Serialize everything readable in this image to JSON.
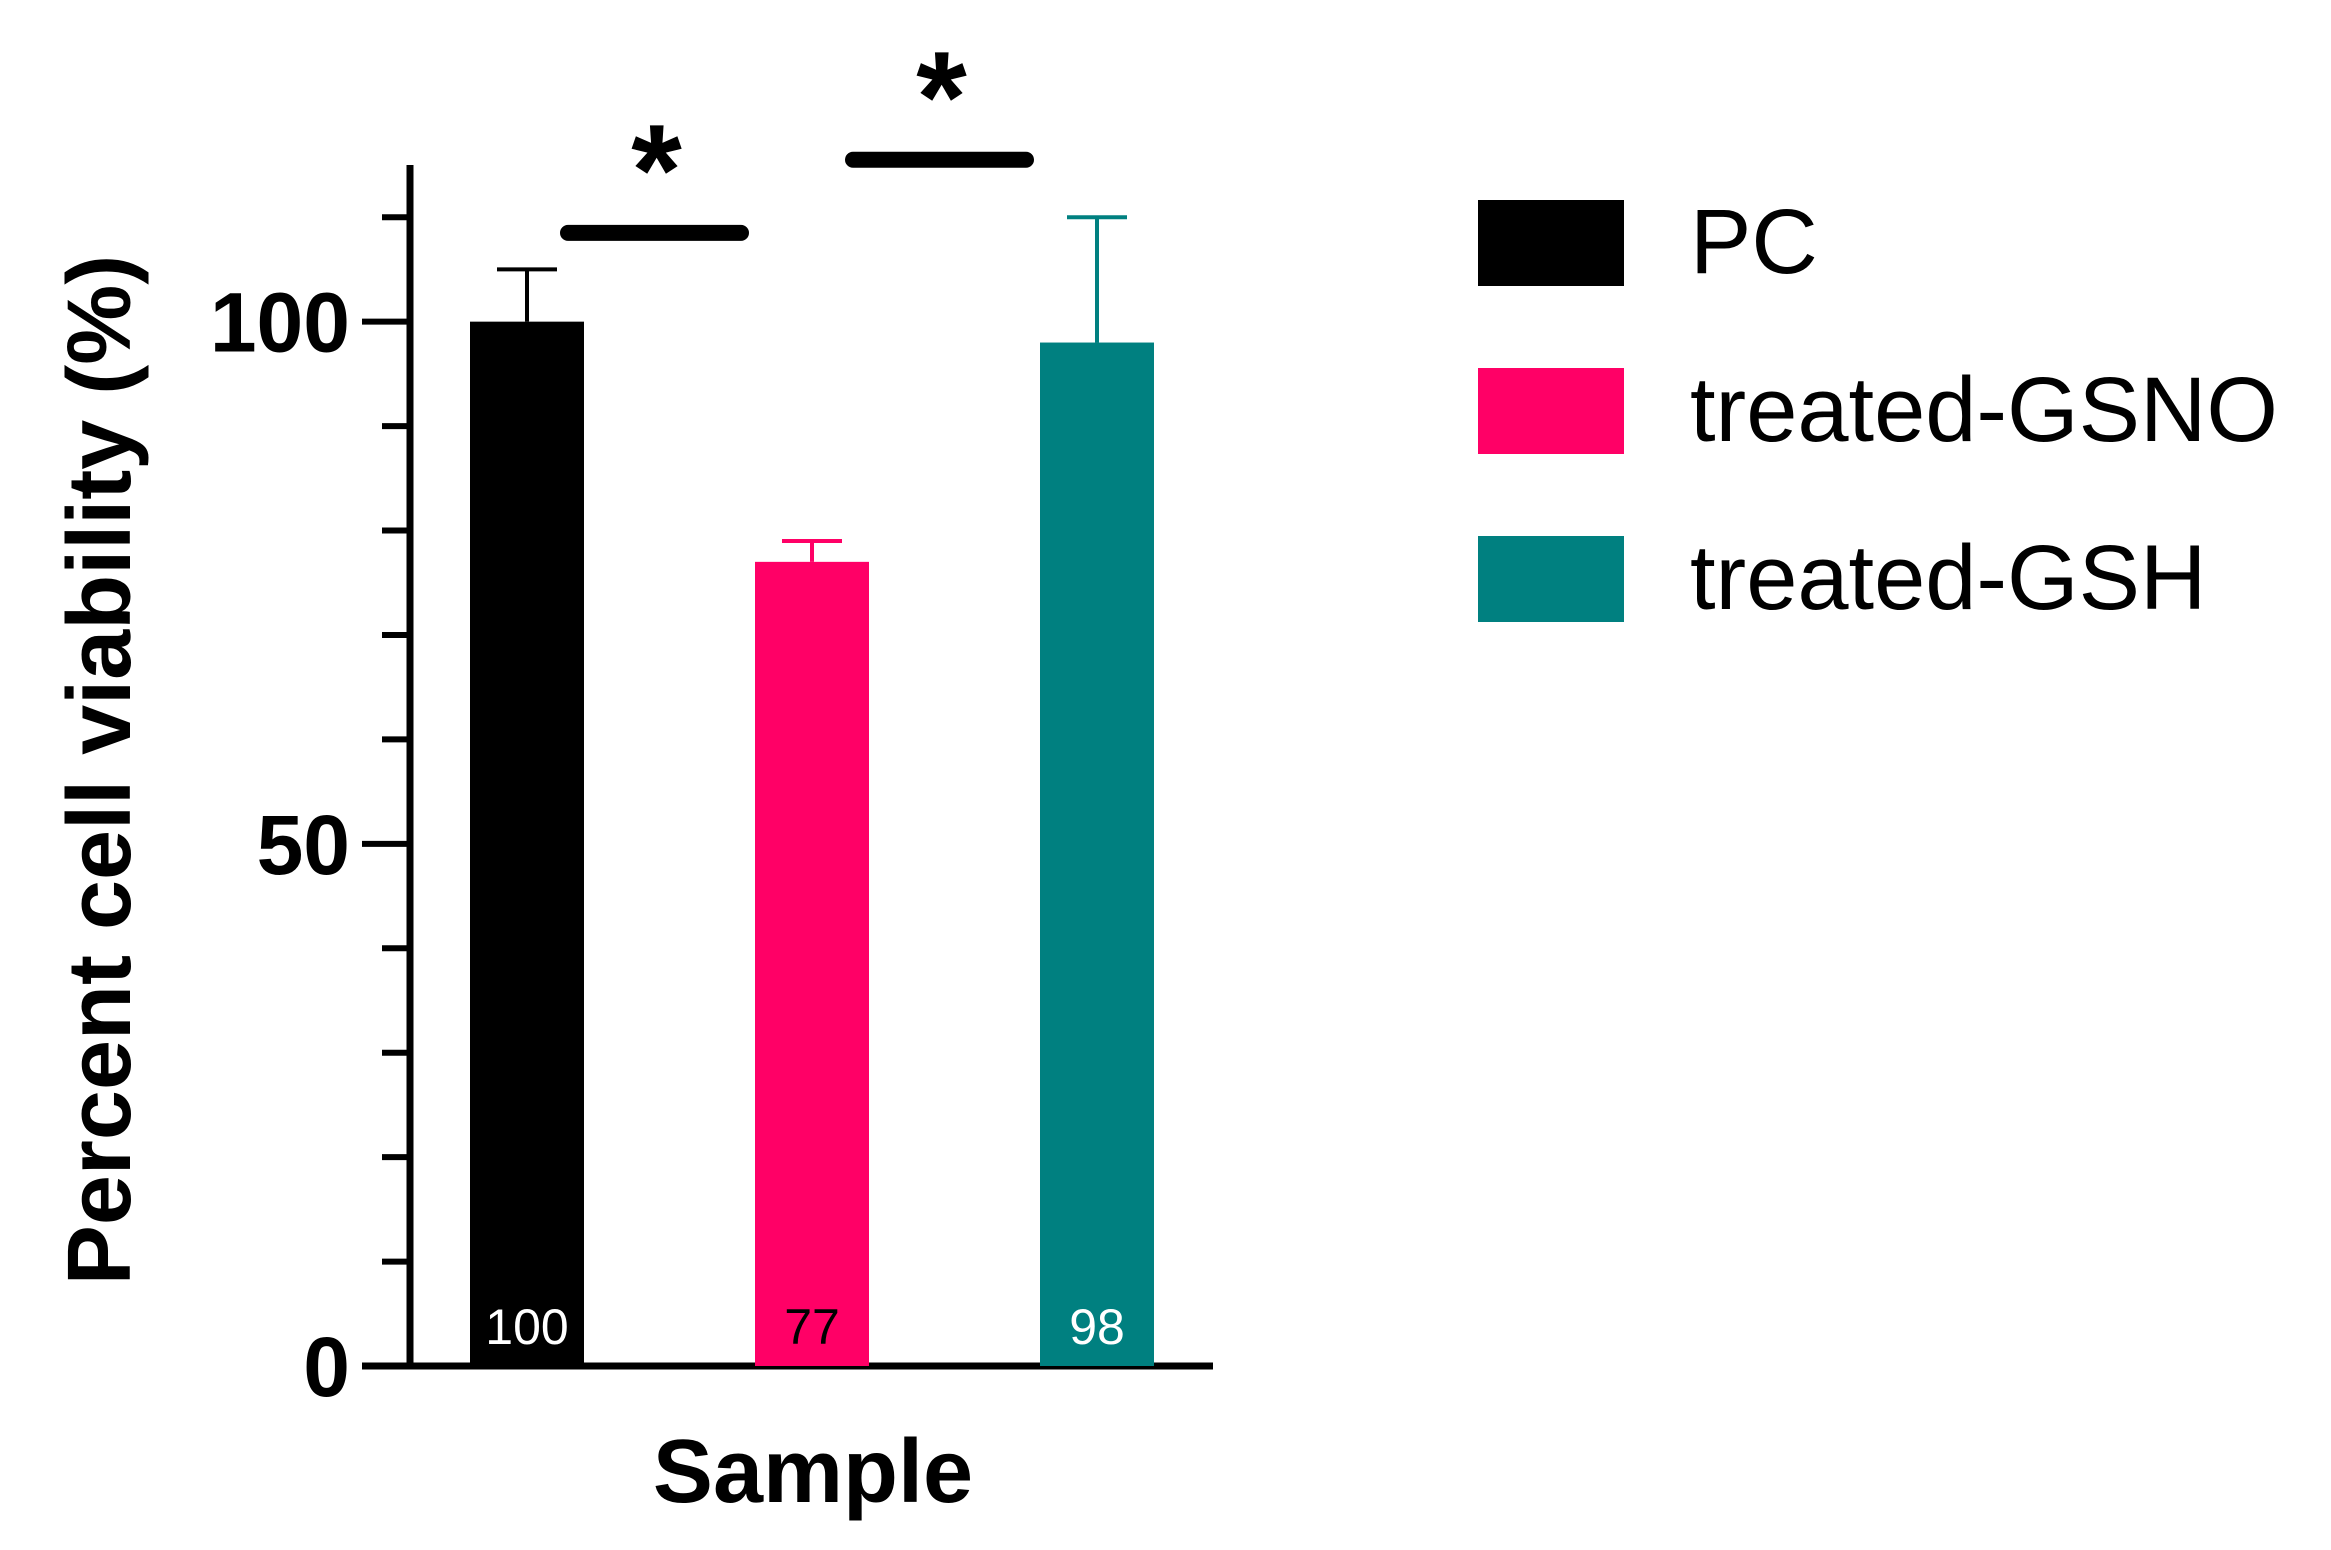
{
  "chart_data": {
    "type": "bar",
    "xlabel": "Sample",
    "ylabel": "Percent cell viability (%)",
    "ylim": [
      0,
      115
    ],
    "yticks": [
      0,
      50,
      100
    ],
    "categories": [
      "PC",
      "treated-GSNO",
      "treated-GSH"
    ],
    "values": [
      100,
      77,
      98
    ],
    "error": [
      5,
      2,
      12
    ],
    "value_labels": [
      "100",
      "77",
      "98"
    ],
    "colors": [
      "#000000",
      "#ff0066",
      "#008080"
    ],
    "label_colors": [
      "#ffffff",
      "#000000",
      "#ffffff"
    ],
    "significance": [
      {
        "between": [
          0,
          1
        ],
        "mark": "*",
        "level": 108.5
      },
      {
        "between": [
          1,
          2
        ],
        "mark": "*",
        "level": 115.5
      }
    ],
    "legend": {
      "position": "right",
      "entries": [
        "PC",
        "treated-GSNO",
        "treated-GSH"
      ]
    },
    "grid": false
  }
}
